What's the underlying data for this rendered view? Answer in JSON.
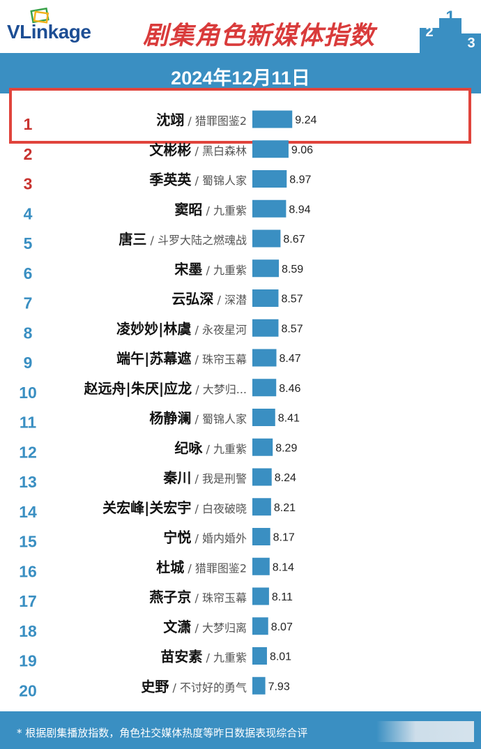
{
  "header": {
    "logo_text": "VLinkage",
    "title": "剧集角色新媒体指数",
    "podium_digits": [
      "2",
      "1",
      "3"
    ]
  },
  "date": "2024年12月11日",
  "footer": {
    "note": "* 根据剧集播放指数，角色社交媒体热度等昨日数据表现综合评"
  },
  "colors": {
    "bar": "#3a8fc2",
    "rank_top3": "#c8332f",
    "rank_other": "#3a8fc2",
    "highlight": "#e0443c"
  },
  "chart_data": {
    "type": "bar",
    "orientation": "horizontal",
    "title": "剧集角色新媒体指数",
    "rows": [
      {
        "rank": "1",
        "role": "沈翊",
        "drama": "猎罪图鉴2",
        "value": 9.24
      },
      {
        "rank": "2",
        "role": "文彬彬",
        "drama": "黑白森林",
        "value": 9.06
      },
      {
        "rank": "3",
        "role": "季英英",
        "drama": "蜀锦人家",
        "value": 8.97
      },
      {
        "rank": "4",
        "role": "窦昭",
        "drama": "九重紫",
        "value": 8.94
      },
      {
        "rank": "5",
        "role": "唐三",
        "drama": "斗罗大陆之燃魂战",
        "value": 8.67
      },
      {
        "rank": "6",
        "role": "宋墨",
        "drama": "九重紫",
        "value": 8.59
      },
      {
        "rank": "7",
        "role": "云弘深",
        "drama": "深潜",
        "value": 8.57
      },
      {
        "rank": "8",
        "role": "凌妙妙|林虞",
        "drama": "永夜星河",
        "value": 8.57
      },
      {
        "rank": "9",
        "role": "端午|苏幕遮",
        "drama": "珠帘玉幕",
        "value": 8.47
      },
      {
        "rank": "10",
        "role": "赵远舟|朱厌|应龙",
        "drama": "大梦归...",
        "value": 8.46
      },
      {
        "rank": "11",
        "role": "杨静澜",
        "drama": "蜀锦人家",
        "value": 8.41
      },
      {
        "rank": "12",
        "role": "纪咏",
        "drama": "九重紫",
        "value": 8.29
      },
      {
        "rank": "13",
        "role": "秦川",
        "drama": "我是刑警",
        "value": 8.24
      },
      {
        "rank": "14",
        "role": "关宏峰|关宏宇",
        "drama": "白夜破晓",
        "value": 8.21
      },
      {
        "rank": "15",
        "role": "宁悦",
        "drama": "婚内婚外",
        "value": 8.17
      },
      {
        "rank": "16",
        "role": "杜城",
        "drama": "猎罪图鉴2",
        "value": 8.14
      },
      {
        "rank": "17",
        "role": "燕子京",
        "drama": "珠帘玉幕",
        "value": 8.11
      },
      {
        "rank": "18",
        "role": "文潇",
        "drama": "大梦归离",
        "value": 8.07
      },
      {
        "rank": "19",
        "role": "苗安素",
        "drama": "九重紫",
        "value": 8.01
      },
      {
        "rank": "20",
        "role": "史野",
        "drama": "不讨好的勇气",
        "value": 7.93
      }
    ],
    "value_labels": true
  }
}
